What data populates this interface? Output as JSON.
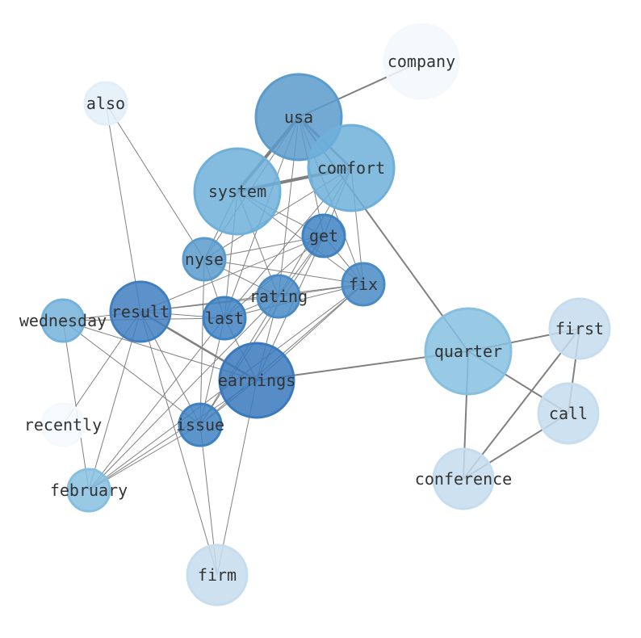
{
  "nodes": [
    {
      "id": "company",
      "label": "company",
      "size": "l",
      "color": "#f3f8fd"
    },
    {
      "id": "also",
      "label": "also",
      "size": "s",
      "color": "#e3eef8"
    },
    {
      "id": "usa",
      "label": "usa",
      "size": "xl",
      "color": "#5b9bcc"
    },
    {
      "id": "comfort",
      "label": "comfort",
      "size": "xl",
      "color": "#6fb0da"
    },
    {
      "id": "system",
      "label": "system",
      "size": "xl",
      "color": "#6fb0da"
    },
    {
      "id": "get",
      "label": "get",
      "size": "s",
      "color": "#3f82c2"
    },
    {
      "id": "nyse",
      "label": "nyse",
      "size": "s",
      "color": "#5b9bcc"
    },
    {
      "id": "fix",
      "label": "fix",
      "size": "s",
      "color": "#4a8bc6"
    },
    {
      "id": "rating",
      "label": "rating",
      "size": "s",
      "color": "#4a8bc6"
    },
    {
      "id": "wednesday",
      "label": "wednesday",
      "size": "s",
      "color": "#74b2db"
    },
    {
      "id": "result",
      "label": "result",
      "size": "m",
      "color": "#3f7fc0"
    },
    {
      "id": "last",
      "label": "last",
      "size": "s",
      "color": "#3f82c2"
    },
    {
      "id": "quarter",
      "label": "quarter",
      "size": "xl",
      "color": "#86bfe0"
    },
    {
      "id": "first",
      "label": "first",
      "size": "m",
      "color": "#c6dcef"
    },
    {
      "id": "earnings",
      "label": "earnings",
      "size": "l",
      "color": "#3a79bd"
    },
    {
      "id": "call",
      "label": "call",
      "size": "m",
      "color": "#c6dcef"
    },
    {
      "id": "recently",
      "label": "recently",
      "size": "s",
      "color": "#f5f9fe"
    },
    {
      "id": "issue",
      "label": "issue",
      "size": "s",
      "color": "#3f82c2"
    },
    {
      "id": "conference",
      "label": "conference",
      "size": "m",
      "color": "#c6dcef"
    },
    {
      "id": "february",
      "label": "february",
      "size": "s",
      "color": "#86bfe0"
    },
    {
      "id": "firm",
      "label": "firm",
      "size": "m",
      "color": "#c6dcef"
    }
  ],
  "edges": [
    [
      "usa",
      "system",
      4
    ],
    [
      "usa",
      "comfort",
      3
    ],
    [
      "system",
      "comfort",
      4
    ],
    [
      "usa",
      "company",
      2
    ],
    [
      "usa",
      "quarter",
      2
    ],
    [
      "result",
      "earnings",
      2.5
    ],
    [
      "earnings",
      "quarter",
      2
    ],
    [
      "quarter",
      "first",
      2
    ],
    [
      "quarter",
      "call",
      2
    ],
    [
      "quarter",
      "conference",
      2
    ],
    [
      "first",
      "conference",
      2
    ],
    [
      "first",
      "call",
      2
    ],
    [
      "call",
      "conference",
      2
    ],
    [
      "usa",
      "nyse",
      1
    ],
    [
      "usa",
      "last",
      1
    ],
    [
      "usa",
      "rating",
      1
    ],
    [
      "usa",
      "get",
      1
    ],
    [
      "usa",
      "fix",
      1
    ],
    [
      "system",
      "nyse",
      1
    ],
    [
      "system",
      "last",
      1
    ],
    [
      "system",
      "rating",
      1
    ],
    [
      "system",
      "get",
      1
    ],
    [
      "system",
      "fix",
      1
    ],
    [
      "comfort",
      "nyse",
      1
    ],
    [
      "comfort",
      "get",
      1
    ],
    [
      "comfort",
      "fix",
      1
    ],
    [
      "comfort",
      "rating",
      1
    ],
    [
      "comfort",
      "last",
      1
    ],
    [
      "get",
      "nyse",
      1
    ],
    [
      "get",
      "result",
      1
    ],
    [
      "get",
      "rating",
      1
    ],
    [
      "get",
      "last",
      1
    ],
    [
      "get",
      "earnings",
      1
    ],
    [
      "get",
      "issue",
      1
    ],
    [
      "get",
      "fix",
      1
    ],
    [
      "nyse",
      "fix",
      1
    ],
    [
      "nyse",
      "rating",
      1
    ],
    [
      "nyse",
      "last",
      1
    ],
    [
      "nyse",
      "issue",
      1
    ],
    [
      "also",
      "nyse",
      1
    ],
    [
      "also",
      "result",
      1
    ],
    [
      "fix",
      "result",
      1
    ],
    [
      "fix",
      "rating",
      1
    ],
    [
      "fix",
      "last",
      1
    ],
    [
      "fix",
      "earnings",
      1
    ],
    [
      "fix",
      "issue",
      1
    ],
    [
      "fix",
      "february",
      1
    ],
    [
      "rating",
      "result",
      1
    ],
    [
      "rating",
      "last",
      1
    ],
    [
      "rating",
      "earnings",
      1
    ],
    [
      "rating",
      "issue",
      1
    ],
    [
      "rating",
      "february",
      1
    ],
    [
      "wednesday",
      "result",
      1
    ],
    [
      "wednesday",
      "last",
      1
    ],
    [
      "wednesday",
      "earnings",
      1
    ],
    [
      "wednesday",
      "issue",
      1
    ],
    [
      "wednesday",
      "february",
      1
    ],
    [
      "result",
      "last",
      1
    ],
    [
      "result",
      "issue",
      1
    ],
    [
      "result",
      "february",
      1
    ],
    [
      "result",
      "recently",
      1
    ],
    [
      "result",
      "firm",
      1
    ],
    [
      "last",
      "issue",
      1
    ],
    [
      "last",
      "earnings",
      1
    ],
    [
      "last",
      "february",
      1
    ],
    [
      "earnings",
      "issue",
      1
    ],
    [
      "earnings",
      "firm",
      1
    ],
    [
      "earnings",
      "february",
      1
    ],
    [
      "issue",
      "firm",
      1
    ],
    [
      "issue",
      "february",
      1
    ]
  ]
}
